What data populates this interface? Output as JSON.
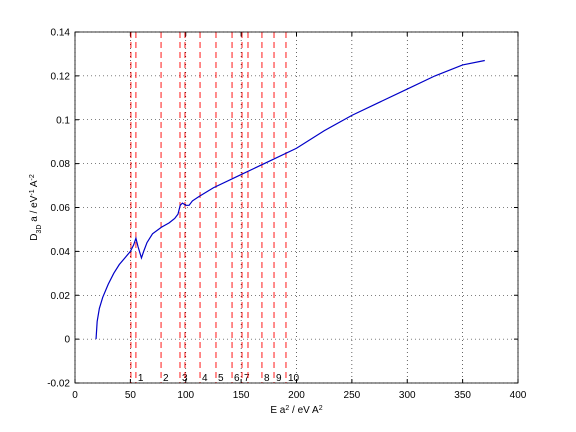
{
  "chart_data": {
    "type": "line",
    "xlabel": [
      "E a",
      "2",
      " / eV A",
      "2"
    ],
    "ylabel": [
      "D",
      "3D",
      " a / eV",
      "-1",
      " A",
      "-2"
    ],
    "xlim": [
      0,
      400
    ],
    "xticks": [
      0,
      50,
      100,
      150,
      200,
      250,
      300,
      350,
      400
    ],
    "ylim": [
      -0.02,
      0.14
    ],
    "yticks": [
      -0.02,
      0,
      0.02,
      0.04,
      0.06,
      0.08,
      0.1,
      0.12,
      0.14
    ],
    "grid": true,
    "series": [
      {
        "color": "#0000c8",
        "x": [
          19,
          20,
          22,
          25,
          30,
          35,
          40,
          45,
          50,
          53,
          55,
          57,
          60,
          62,
          65,
          70,
          78,
          85,
          90,
          93,
          95,
          97,
          100,
          103,
          106,
          112,
          125,
          150,
          175,
          200,
          225,
          250,
          275,
          300,
          325,
          350,
          370
        ],
        "values": [
          0,
          0.008,
          0.014,
          0.019,
          0.025,
          0.03,
          0.034,
          0.037,
          0.04,
          0.043,
          0.046,
          0.042,
          0.037,
          0.04,
          0.044,
          0.048,
          0.051,
          0.053,
          0.055,
          0.057,
          0.061,
          0.062,
          0.061,
          0.061,
          0.063,
          0.065,
          0.069,
          0.075,
          0.081,
          0.087,
          0.095,
          0.102,
          0.108,
          0.114,
          0.12,
          0.125,
          0.127
        ]
      }
    ],
    "vlines": {
      "color": "#ff0000",
      "x": [
        50.5,
        55,
        77.7,
        94.8,
        99.3,
        112.9,
        127.3,
        141.8,
        150.8,
        156.2,
        168.8,
        179.7,
        190.5
      ],
      "labels": [
        null,
        "1",
        "2",
        "3",
        null,
        "4",
        "5",
        "6",
        "7",
        null,
        "8",
        "9",
        "10"
      ]
    }
  }
}
